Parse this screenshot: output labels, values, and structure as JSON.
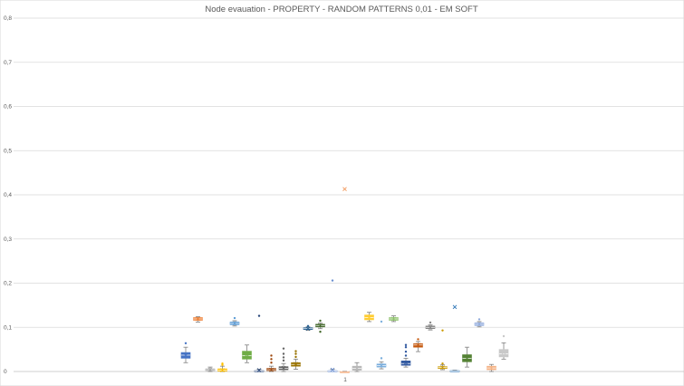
{
  "chart_data": {
    "type": "box",
    "title": "Node evauation - PROPERTY - RANDOM PATTERNS 0,01 - EM SOFT",
    "categories": [
      "1"
    ],
    "ylim": [
      0,
      0.8
    ],
    "yticks": [
      "0",
      "0,1",
      "0,2",
      "0,3",
      "0,4",
      "0,5",
      "0,6",
      "0,7",
      "0,8"
    ],
    "grid": true,
    "legend": "none",
    "series": [
      {
        "color": "#4472C4",
        "min": 0.02,
        "q1": 0.03,
        "median": 0.037,
        "q3": 0.043,
        "max": 0.055,
        "mean": 0.036,
        "outliers": [
          0.064
        ]
      },
      {
        "color": "#ED7D31",
        "min": 0.112,
        "q1": 0.116,
        "median": 0.119,
        "q3": 0.122,
        "max": 0.124,
        "mean": 0.119,
        "outliers": []
      },
      {
        "color": "#A5A5A5",
        "min": 0.0,
        "q1": 0.002,
        "median": 0.004,
        "q3": 0.006,
        "max": 0.01,
        "mean": 0.004,
        "outliers": []
      },
      {
        "color": "#FFC000",
        "min": 0.0,
        "q1": 0.001,
        "median": 0.003,
        "q3": 0.006,
        "max": 0.012,
        "mean": 0.003,
        "outliers": [
          0.015,
          0.018
        ]
      },
      {
        "color": "#5B9BD5",
        "min": 0.103,
        "q1": 0.106,
        "median": 0.109,
        "q3": 0.112,
        "max": 0.115,
        "mean": 0.109,
        "outliers": [
          0.121
        ]
      },
      {
        "color": "#70AD47",
        "min": 0.02,
        "q1": 0.028,
        "median": 0.036,
        "q3": 0.046,
        "max": 0.06,
        "mean": 0.038,
        "outliers": []
      },
      {
        "color": "#264478",
        "min": 0.0,
        "q1": 0.0,
        "median": 0.001,
        "q3": 0.002,
        "max": 0.005,
        "mean": 0.003,
        "outliers": [
          0.126
        ]
      },
      {
        "color": "#9E480E",
        "min": 0.0,
        "q1": 0.002,
        "median": 0.004,
        "q3": 0.007,
        "max": 0.012,
        "mean": 0.004,
        "outliers": [
          0.02,
          0.028,
          0.036
        ]
      },
      {
        "color": "#636363",
        "min": 0.0,
        "q1": 0.004,
        "median": 0.007,
        "q3": 0.011,
        "max": 0.018,
        "mean": 0.008,
        "outliers": [
          0.025,
          0.032,
          0.04,
          0.052
        ]
      },
      {
        "color": "#997300",
        "min": 0.005,
        "q1": 0.012,
        "median": 0.016,
        "q3": 0.02,
        "max": 0.028,
        "mean": 0.017,
        "outliers": [
          0.033,
          0.04,
          0.046
        ]
      },
      {
        "color": "#255E91",
        "min": 0.093,
        "q1": 0.095,
        "median": 0.097,
        "q3": 0.099,
        "max": 0.101,
        "mean": 0.097,
        "outliers": [
          0.103
        ]
      },
      {
        "color": "#43682B",
        "min": 0.097,
        "q1": 0.101,
        "median": 0.104,
        "q3": 0.107,
        "max": 0.11,
        "mean": 0.104,
        "outliers": [
          0.09,
          0.115
        ]
      },
      {
        "color": "#698ED0",
        "min": 0.0,
        "q1": 0.0,
        "median": 0.001,
        "q3": 0.002,
        "max": 0.005,
        "mean": 0.004,
        "outliers": [
          0.206
        ]
      },
      {
        "color": "#F1975A",
        "min": 0.0,
        "q1": 0.0,
        "median": 0.0,
        "q3": 0.0,
        "max": 0.001,
        "mean": 0.413,
        "outliers": []
      },
      {
        "color": "#B7B7B7",
        "min": 0.0,
        "q1": 0.003,
        "median": 0.007,
        "q3": 0.012,
        "max": 0.02,
        "mean": 0.007,
        "outliers": []
      },
      {
        "color": "#FFCD33",
        "min": 0.113,
        "q1": 0.117,
        "median": 0.122,
        "q3": 0.128,
        "max": 0.134,
        "mean": 0.123,
        "outliers": []
      },
      {
        "color": "#7CAFDD",
        "min": 0.006,
        "q1": 0.01,
        "median": 0.013,
        "q3": 0.017,
        "max": 0.022,
        "mean": 0.014,
        "outliers": [
          0.03,
          0.113
        ]
      },
      {
        "color": "#8CC168",
        "min": 0.113,
        "q1": 0.116,
        "median": 0.119,
        "q3": 0.122,
        "max": 0.126,
        "mean": 0.119,
        "outliers": []
      },
      {
        "color": "#335AA1",
        "min": 0.01,
        "q1": 0.014,
        "median": 0.018,
        "q3": 0.024,
        "max": 0.03,
        "mean": 0.02,
        "outliers": [
          0.036,
          0.045,
          0.055,
          0.06
        ]
      },
      {
        "color": "#C55A11",
        "min": 0.045,
        "q1": 0.055,
        "median": 0.06,
        "q3": 0.063,
        "max": 0.068,
        "mean": 0.06,
        "outliers": [
          0.073
        ]
      },
      {
        "color": "#848484",
        "min": 0.094,
        "q1": 0.097,
        "median": 0.1,
        "q3": 0.103,
        "max": 0.106,
        "mean": 0.1,
        "outliers": [
          0.111
        ]
      },
      {
        "color": "#CC9A00",
        "min": 0.004,
        "q1": 0.007,
        "median": 0.009,
        "q3": 0.011,
        "max": 0.015,
        "mean": 0.009,
        "outliers": [
          0.018,
          0.093
        ]
      },
      {
        "color": "#2E75B6",
        "min": 0.0,
        "q1": 0.0,
        "median": 0.001,
        "q3": 0.002,
        "max": 0.003,
        "mean": 0.146,
        "outliers": []
      },
      {
        "color": "#548235",
        "min": 0.01,
        "q1": 0.022,
        "median": 0.03,
        "q3": 0.038,
        "max": 0.055,
        "mean": 0.03,
        "outliers": []
      },
      {
        "color": "#8FAADC",
        "min": 0.101,
        "q1": 0.104,
        "median": 0.107,
        "q3": 0.11,
        "max": 0.113,
        "mean": 0.107,
        "outliers": [
          0.118
        ]
      },
      {
        "color": "#F4B183",
        "min": 0.0,
        "q1": 0.004,
        "median": 0.008,
        "q3": 0.012,
        "max": 0.016,
        "mean": 0.008,
        "outliers": []
      },
      {
        "color": "#C9C9C9",
        "min": 0.028,
        "q1": 0.033,
        "median": 0.04,
        "q3": 0.05,
        "max": 0.065,
        "mean": 0.043,
        "outliers": [
          0.08
        ]
      }
    ]
  }
}
